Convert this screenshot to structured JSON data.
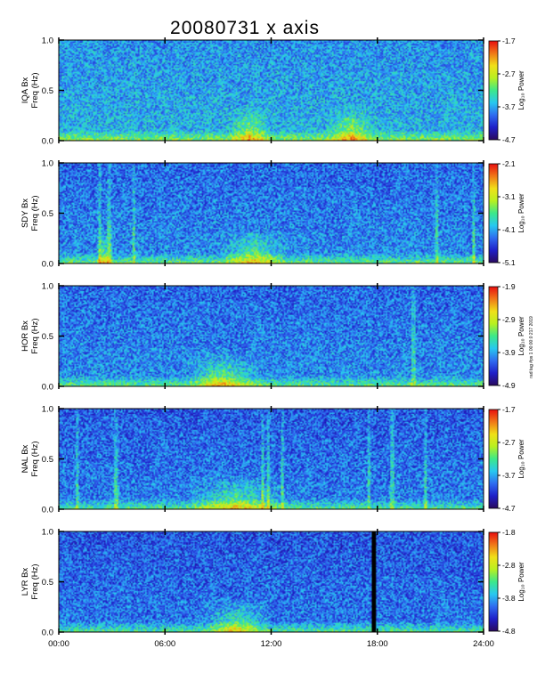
{
  "chart_data": {
    "type": "heatmap",
    "title": "20080731 x axis",
    "x_ticks": [
      "00:00",
      "06:00",
      "12:00",
      "18:00",
      "24:00"
    ],
    "x_range_hours": [
      0,
      24
    ],
    "y_range_hz": [
      0,
      1.0
    ],
    "y_ticks": [
      "0.0",
      "0.5",
      "1.0"
    ],
    "colorbar_label": "Log₁₀ Power",
    "colorscale": [
      "#2a0a5e",
      "#1f20c8",
      "#2f6cf0",
      "#28c8f0",
      "#3ce88a",
      "#b8f020",
      "#f0e018",
      "#f07818",
      "#e80f0f"
    ],
    "side_note": "rad tag #ps 1 00:00:0 217 2019",
    "panels": [
      {
        "station": "IQA",
        "line1": "IQA Bx",
        "line2": "Freq (Hz)",
        "cbar_ticks": [
          "-1.7",
          "-2.7",
          "-3.7",
          "-4.7"
        ],
        "features": {
          "base": 0.36,
          "low_hours": [
            [
              9.5,
              12.0
            ],
            [
              15.0,
              18.0
            ]
          ],
          "vertical_lines_hours": []
        }
      },
      {
        "station": "SDY",
        "line1": "SDY Bx",
        "line2": "Freq (Hz)",
        "cbar_ticks": [
          "-2.1",
          "-3.1",
          "-4.1",
          "-5.1"
        ],
        "features": {
          "base": 0.3,
          "low_hours": [
            [
              2.0,
              3.0
            ],
            [
              9.0,
              13.0
            ]
          ],
          "vertical_lines_hours": [
            2.3,
            2.8,
            4.2,
            21.3,
            23.4
          ]
        }
      },
      {
        "station": "HOR",
        "line1": "HOR Bx",
        "line2": "Freq (Hz)",
        "cbar_ticks": [
          "-1.9",
          "-2.9",
          "-3.9",
          "-4.9"
        ],
        "features": {
          "base": 0.3,
          "low_hours": [
            [
              7.0,
              11.5
            ]
          ],
          "vertical_lines_hours": [
            20.0
          ]
        }
      },
      {
        "station": "NAL",
        "line1": "NAL Bx",
        "line2": "Freq (Hz)",
        "cbar_ticks": [
          "-1.7",
          "-2.7",
          "-3.7",
          "-4.7"
        ],
        "features": {
          "base": 0.28,
          "low_hours": [
            [
              7.0,
              13.0
            ]
          ],
          "vertical_lines_hours": [
            1.0,
            3.2,
            11.5,
            11.8,
            12.6,
            17.5,
            18.8,
            20.7
          ]
        }
      },
      {
        "station": "LYR",
        "line1": "LYR Bx",
        "line2": "Freq (Hz)",
        "cbar_ticks": [
          "-1.8",
          "-2.8",
          "-3.8",
          "-4.8"
        ],
        "features": {
          "base": 0.27,
          "low_hours": [
            [
              8.0,
              12.0
            ]
          ],
          "vertical_lines_hours": [],
          "data_gap_hours": [
            17.6,
            17.9
          ]
        }
      }
    ]
  }
}
